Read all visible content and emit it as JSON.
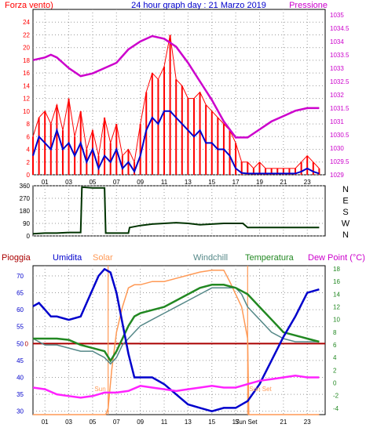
{
  "header": {
    "left_title": "Forza vento)",
    "center_title": "24 hour graph day : 21 Marzo 2019",
    "right_title": "Pressione"
  },
  "labels": {
    "pioggia": "Pioggia",
    "umidita": "Umidita",
    "solar": "Solar",
    "windchill": "Windchill",
    "temperatura": "Temperatura",
    "dewpoint": "Dew Point (°C)",
    "sun_rise": "Sun",
    "sun_set": "Sun Set"
  },
  "colors": {
    "wind_gust": "#ff0000",
    "wind_avg": "#0000cc",
    "pressure": "#cc00cc",
    "direction": "#003300",
    "humidity": "#0000cc",
    "solar": "#ff9955",
    "windchill": "#558888",
    "temperature": "#228822",
    "dewpoint": "#ff22ff",
    "rain": "#aa0000"
  },
  "chart_data": [
    {
      "type": "line",
      "name": "wind_pressure",
      "x_ticks": [
        "01",
        "03",
        "05",
        "07",
        "09",
        "11",
        "13",
        "15",
        "17",
        "19",
        "21",
        "23"
      ],
      "y_left_ticks": [
        "0",
        "2",
        "4",
        "6",
        "8",
        "10",
        "12",
        "14",
        "16",
        "18",
        "20",
        "22",
        "24"
      ],
      "y_right_ticks": [
        "1029",
        "1029.5",
        "1030",
        "1030.5",
        "1031",
        "1031.5",
        "1032",
        "1032.5",
        "1033",
        "1033.5",
        "1034",
        "1034.5",
        "1035"
      ],
      "ylim_left": [
        0,
        26
      ],
      "ylim_right": [
        1029,
        1035.2
      ],
      "xlim": [
        0,
        24.5
      ],
      "series": [
        {
          "key": "gust",
          "axis": "left",
          "x": [
            0,
            0.5,
            1,
            1.5,
            2,
            2.5,
            3,
            3.5,
            4,
            4.5,
            5,
            5.5,
            6,
            6.5,
            7,
            7.5,
            8,
            8.5,
            9,
            9.5,
            10,
            10.5,
            11,
            11.5,
            12,
            12.5,
            13,
            13.5,
            14,
            14.5,
            15,
            15.5,
            16,
            16.5,
            17,
            17.5,
            18,
            18.5,
            19,
            19.5,
            20,
            20.5,
            21,
            21.5,
            22,
            22.5,
            23,
            23.5,
            24
          ],
          "values": [
            6,
            9,
            10,
            8,
            11,
            7,
            12,
            6,
            10,
            4,
            7,
            3,
            9,
            5,
            8,
            3,
            4,
            2,
            8,
            13,
            16,
            15,
            17,
            22,
            15,
            14,
            12,
            12,
            13,
            11,
            10,
            9,
            8,
            7,
            5,
            2,
            2,
            1,
            2,
            1,
            1,
            1,
            1,
            1,
            1,
            2,
            3,
            2,
            1
          ]
        },
        {
          "key": "avg",
          "axis": "left",
          "x": [
            0,
            0.5,
            1,
            1.5,
            2,
            2.5,
            3,
            3.5,
            4,
            4.5,
            5,
            5.5,
            6,
            6.5,
            7,
            7.5,
            8,
            8.5,
            9,
            9.5,
            10,
            10.5,
            11,
            11.5,
            12,
            12.5,
            13,
            13.5,
            14,
            14.5,
            15,
            15.5,
            16,
            16.5,
            17,
            17.5,
            18,
            18.5,
            19,
            19.5,
            20,
            20.5,
            21,
            21.5,
            22,
            22.5,
            23,
            23.5,
            24
          ],
          "values": [
            3,
            6,
            5,
            4,
            7,
            4,
            5,
            3,
            5,
            2,
            4,
            1,
            3,
            2,
            4,
            1,
            2,
            0.5,
            3,
            7,
            9,
            8,
            10,
            10,
            9,
            8,
            7,
            6,
            7,
            5,
            5,
            4,
            4,
            3,
            1,
            0.3,
            0.2,
            0.2,
            0.2,
            0.2,
            0.2,
            0.2,
            0.2,
            0.2,
            0.2,
            0.5,
            1,
            0.5,
            0.2
          ]
        },
        {
          "key": "pressure",
          "axis": "right",
          "x": [
            0,
            1,
            1.5,
            2,
            3,
            4,
            5,
            6,
            7,
            8,
            9,
            10,
            11,
            12,
            13,
            14,
            15,
            16,
            17,
            18,
            19,
            20,
            21,
            22,
            23,
            24
          ],
          "values": [
            1033.3,
            1033.4,
            1033.5,
            1033.4,
            1033,
            1032.7,
            1032.8,
            1033,
            1033.2,
            1033.7,
            1034,
            1034.2,
            1034.1,
            1033.8,
            1033.2,
            1032.5,
            1031.8,
            1031,
            1030.4,
            1030.4,
            1030.7,
            1031,
            1031.2,
            1031.4,
            1031.5,
            1031.5
          ]
        }
      ]
    },
    {
      "type": "line",
      "name": "wind_direction",
      "y_left_ticks": [
        "0",
        "90",
        "180",
        "270",
        "360"
      ],
      "y_right_ticks": [
        "N",
        "W",
        "S",
        "E",
        "N"
      ],
      "ylim": [
        0,
        360
      ],
      "series": [
        {
          "key": "direction",
          "x": [
            0,
            1,
            2,
            3,
            3.5,
            4,
            4.1,
            5,
            6,
            6.1,
            8,
            8.1,
            9,
            10,
            11,
            12,
            13,
            14,
            15,
            16,
            17,
            17.6,
            18,
            19,
            20,
            21,
            22,
            23,
            24
          ],
          "values": [
            15,
            20,
            20,
            25,
            25,
            25,
            350,
            345,
            345,
            20,
            20,
            60,
            75,
            85,
            90,
            95,
            90,
            80,
            85,
            90,
            90,
            90,
            60,
            60,
            60,
            60,
            60,
            60,
            60
          ]
        }
      ]
    },
    {
      "type": "line",
      "name": "humidity_temperature",
      "y_left_ticks": [
        "30",
        "35",
        "40",
        "45",
        "50",
        "55",
        "60",
        "65",
        "70"
      ],
      "y_right_ticks": [
        "-4",
        "-2",
        "0",
        "2",
        "4",
        "6",
        "8",
        "10",
        "12",
        "14",
        "16",
        "18"
      ],
      "ylim_left": [
        29,
        73
      ],
      "ylim_right": [
        -5,
        18.5
      ],
      "rain_level": "0",
      "sunrise_hour": 6.3,
      "sunset_hour": 18.0,
      "series": [
        {
          "key": "humidity",
          "axis": "left",
          "x": [
            0,
            0.5,
            1,
            1.5,
            2,
            3,
            4,
            4.5,
            5,
            5.5,
            6,
            6.5,
            7,
            7.5,
            8,
            8.5,
            9,
            10,
            11,
            12,
            13,
            14,
            15,
            16,
            17,
            18,
            19,
            20,
            21,
            22,
            23,
            24
          ],
          "values": [
            61,
            62,
            60,
            58,
            58,
            57,
            58,
            62,
            66,
            70,
            72,
            71,
            65,
            56,
            47,
            40,
            40,
            40,
            38,
            35,
            32,
            31,
            30,
            31,
            31,
            33,
            38,
            45,
            52,
            58,
            65,
            66
          ]
        },
        {
          "key": "windchill",
          "axis": "right",
          "x": [
            0,
            1,
            2,
            3,
            4,
            5,
            6,
            6.5,
            7,
            7.5,
            8,
            8.5,
            9,
            10,
            11,
            12,
            13,
            14,
            15,
            16,
            17,
            17.5,
            18,
            19,
            20,
            21,
            22,
            23,
            24
          ],
          "values": [
            7,
            6,
            6,
            5.5,
            5,
            5,
            4,
            3,
            4,
            6,
            7,
            8,
            9,
            10,
            11,
            12,
            13,
            14,
            15,
            15,
            15,
            14,
            12,
            10,
            8,
            7,
            6.5,
            6.5,
            6.5
          ]
        },
        {
          "key": "temperature",
          "axis": "right",
          "x": [
            0,
            1,
            2,
            3,
            4,
            5,
            6,
            6.5,
            7,
            7.5,
            8,
            8.5,
            9,
            10,
            11,
            12,
            13,
            14,
            15,
            16,
            17,
            17.5,
            18,
            19,
            20,
            21,
            22,
            23,
            24
          ],
          "values": [
            7,
            7,
            7,
            6.8,
            6,
            5.5,
            5,
            3.5,
            5,
            7,
            9,
            10.5,
            11,
            11.5,
            12,
            13,
            14,
            15,
            15.5,
            15.5,
            15,
            14.5,
            14,
            12,
            10,
            8,
            7.5,
            7,
            6.5
          ]
        },
        {
          "key": "solar",
          "axis": "right",
          "x": [
            0,
            6.1,
            6.3,
            6.6,
            7,
            7.5,
            8,
            8.5,
            9,
            10,
            11,
            12,
            13,
            14,
            15,
            16,
            16.5,
            17,
            17.5,
            18,
            18.1,
            24
          ],
          "values": [
            -5,
            -5,
            -4,
            2,
            8,
            12,
            15,
            15.5,
            15.5,
            16,
            16,
            16.5,
            17,
            17.5,
            17.8,
            17.8,
            16,
            14,
            12,
            7,
            -5,
            -5
          ]
        },
        {
          "key": "dewpoint",
          "axis": "left",
          "x": [
            0,
            1,
            2,
            3,
            4,
            5,
            6,
            7,
            8,
            9,
            10,
            11,
            12,
            13,
            14,
            15,
            16,
            17,
            18,
            19,
            20,
            21,
            22,
            23,
            24
          ],
          "values": [
            37,
            36.5,
            35,
            34.5,
            34,
            34.5,
            35.5,
            35.5,
            36,
            37.5,
            37,
            36.5,
            36,
            36.5,
            37,
            37.5,
            37,
            37,
            38,
            39,
            39.5,
            40,
            40.5,
            40,
            40
          ]
        }
      ]
    }
  ]
}
